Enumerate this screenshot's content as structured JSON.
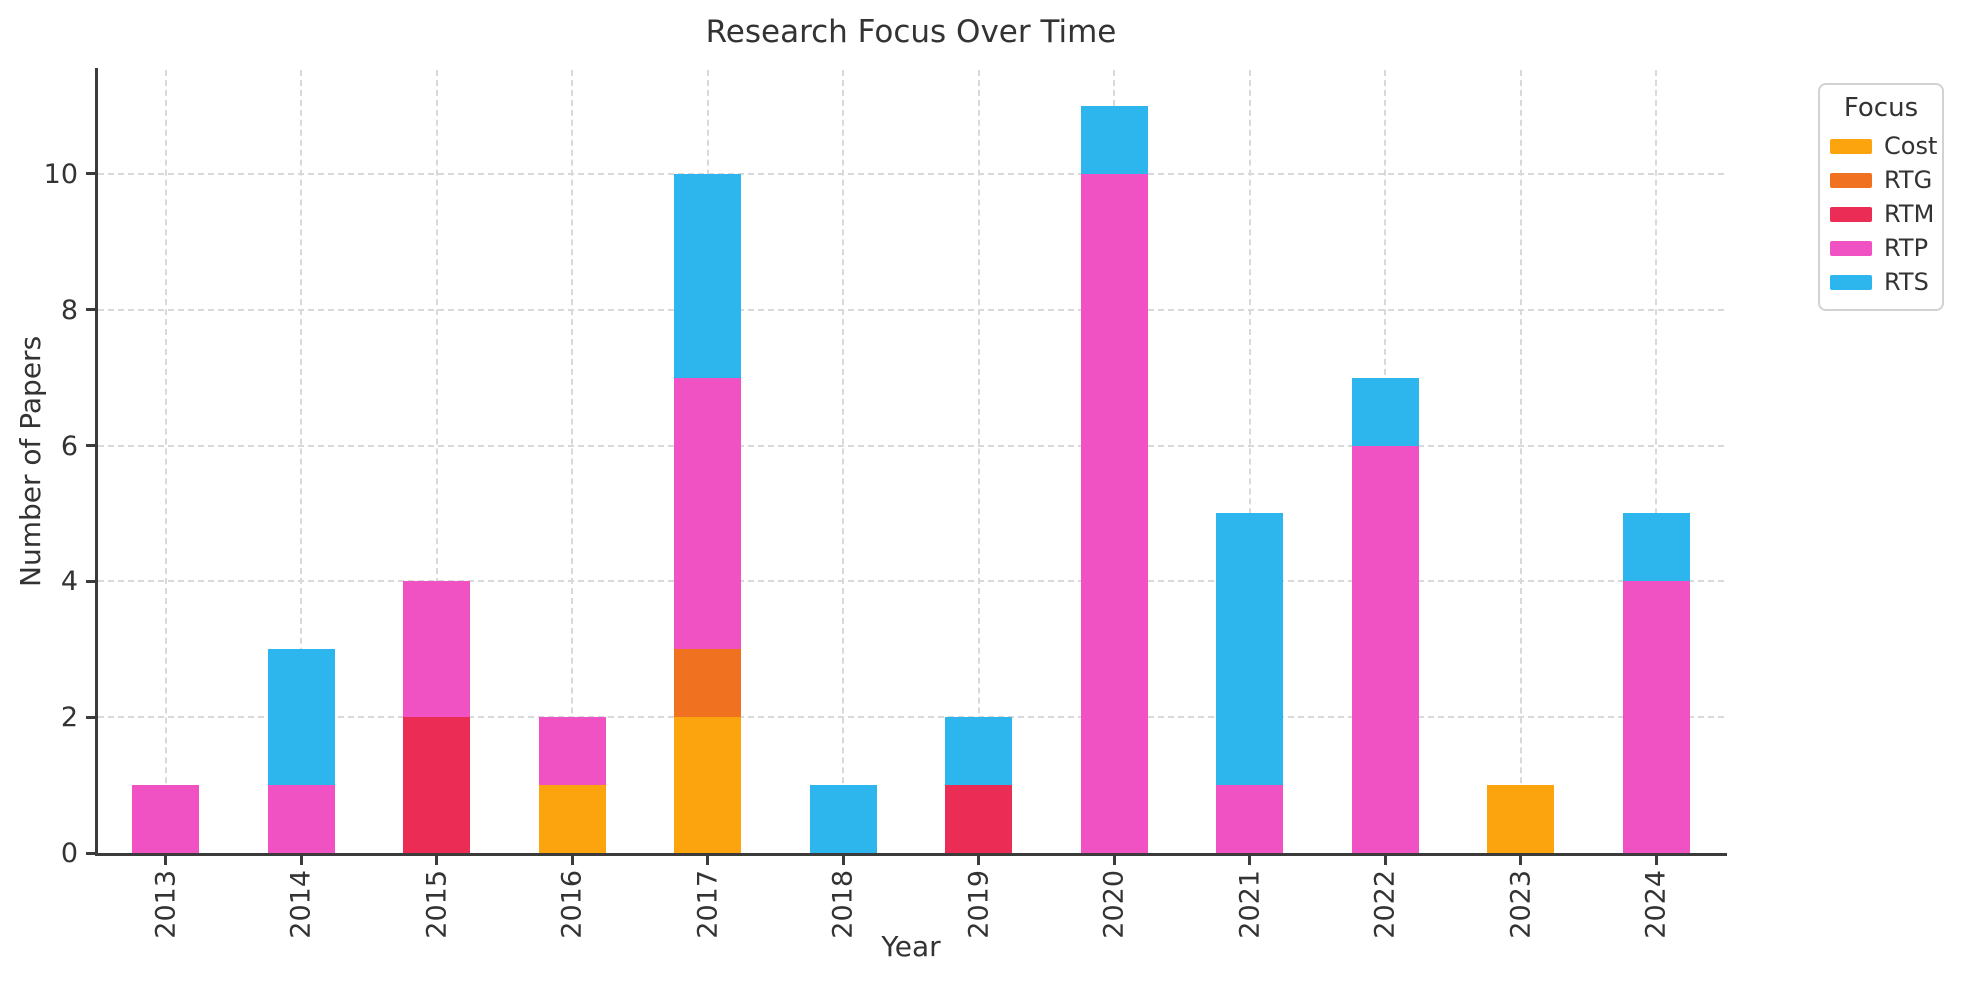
{
  "chart_data": {
    "type": "bar",
    "stacked": true,
    "title": "Research Focus Over Time",
    "xlabel": "Year",
    "ylabel": "Number of Papers",
    "categories": [
      "2013",
      "2014",
      "2015",
      "2016",
      "2017",
      "2018",
      "2019",
      "2020",
      "2021",
      "2022",
      "2023",
      "2024"
    ],
    "series": [
      {
        "name": "Cost",
        "color": "#FCA40E",
        "values": [
          0,
          0,
          0,
          1,
          2,
          0,
          0,
          0,
          0,
          0,
          1,
          0
        ]
      },
      {
        "name": "RTG",
        "color": "#F0711F",
        "values": [
          0,
          0,
          0,
          0,
          1,
          0,
          0,
          0,
          0,
          0,
          0,
          0
        ]
      },
      {
        "name": "RTM",
        "color": "#EB2C55",
        "values": [
          0,
          0,
          2,
          0,
          0,
          0,
          1,
          0,
          0,
          0,
          0,
          0
        ]
      },
      {
        "name": "RTP",
        "color": "#F052C3",
        "values": [
          1,
          1,
          2,
          1,
          4,
          0,
          0,
          10,
          1,
          6,
          0,
          4
        ]
      },
      {
        "name": "RTS",
        "color": "#2DB5EE",
        "values": [
          0,
          2,
          0,
          0,
          3,
          1,
          1,
          1,
          4,
          1,
          0,
          1
        ]
      }
    ],
    "bar_totals": [
      1,
      3,
      4,
      2,
      10,
      1,
      2,
      11,
      5,
      7,
      1,
      5
    ],
    "yticks": [
      0,
      2,
      4,
      6,
      8,
      10
    ],
    "ylim": [
      0,
      11.53
    ],
    "grid": true,
    "grid_color": "#d9d9d9",
    "axis_color": "#3b3b3b",
    "text_color": "#333333",
    "legend": {
      "title": "Focus",
      "position": "outside-upper-right",
      "entries": [
        "Cost",
        "RTG",
        "RTM",
        "RTP",
        "RTS"
      ]
    }
  }
}
